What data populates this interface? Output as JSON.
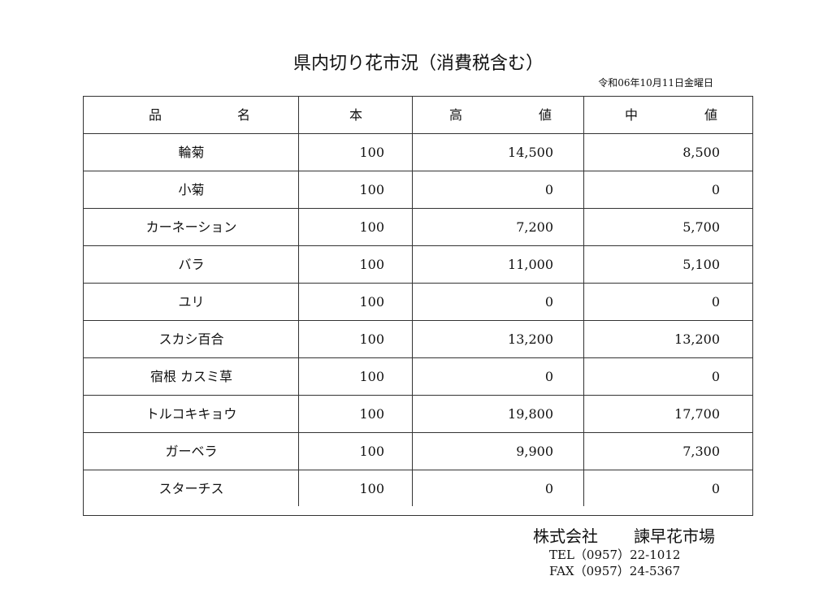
{
  "title": "県内切り花市況（消費税含む）",
  "date": "令和06年10月11日金曜日",
  "headers": {
    "name": [
      "品",
      "名"
    ],
    "count": "本",
    "high": [
      "高",
      "値"
    ],
    "mid": [
      "中",
      "値"
    ]
  },
  "rows": [
    {
      "name": "輪菊",
      "count": "100",
      "high": "14,500",
      "mid": "8,500"
    },
    {
      "name": "小菊",
      "count": "100",
      "high": "0",
      "mid": "0"
    },
    {
      "name": "カーネーション",
      "count": "100",
      "high": "7,200",
      "mid": "5,700"
    },
    {
      "name": "バラ",
      "count": "100",
      "high": "11,000",
      "mid": "5,100"
    },
    {
      "name": "ユリ",
      "count": "100",
      "high": "0",
      "mid": "0"
    },
    {
      "name": "スカシ百合",
      "count": "100",
      "high": "13,200",
      "mid": "13,200"
    },
    {
      "name": "宿根 カスミ草",
      "count": "100",
      "high": "0",
      "mid": "0"
    },
    {
      "name": "トルコキキョウ",
      "count": "100",
      "high": "19,800",
      "mid": "17,700"
    },
    {
      "name": "ガーベラ",
      "count": "100",
      "high": "9,900",
      "mid": "7,300"
    },
    {
      "name": "スターチス",
      "count": "100",
      "high": "0",
      "mid": "0"
    }
  ],
  "footer": {
    "company_type": "株式会社",
    "company_name": "諫早花市場",
    "tel": "TEL（0957）22-1012",
    "fax": "FAX（0957）24-5367"
  }
}
